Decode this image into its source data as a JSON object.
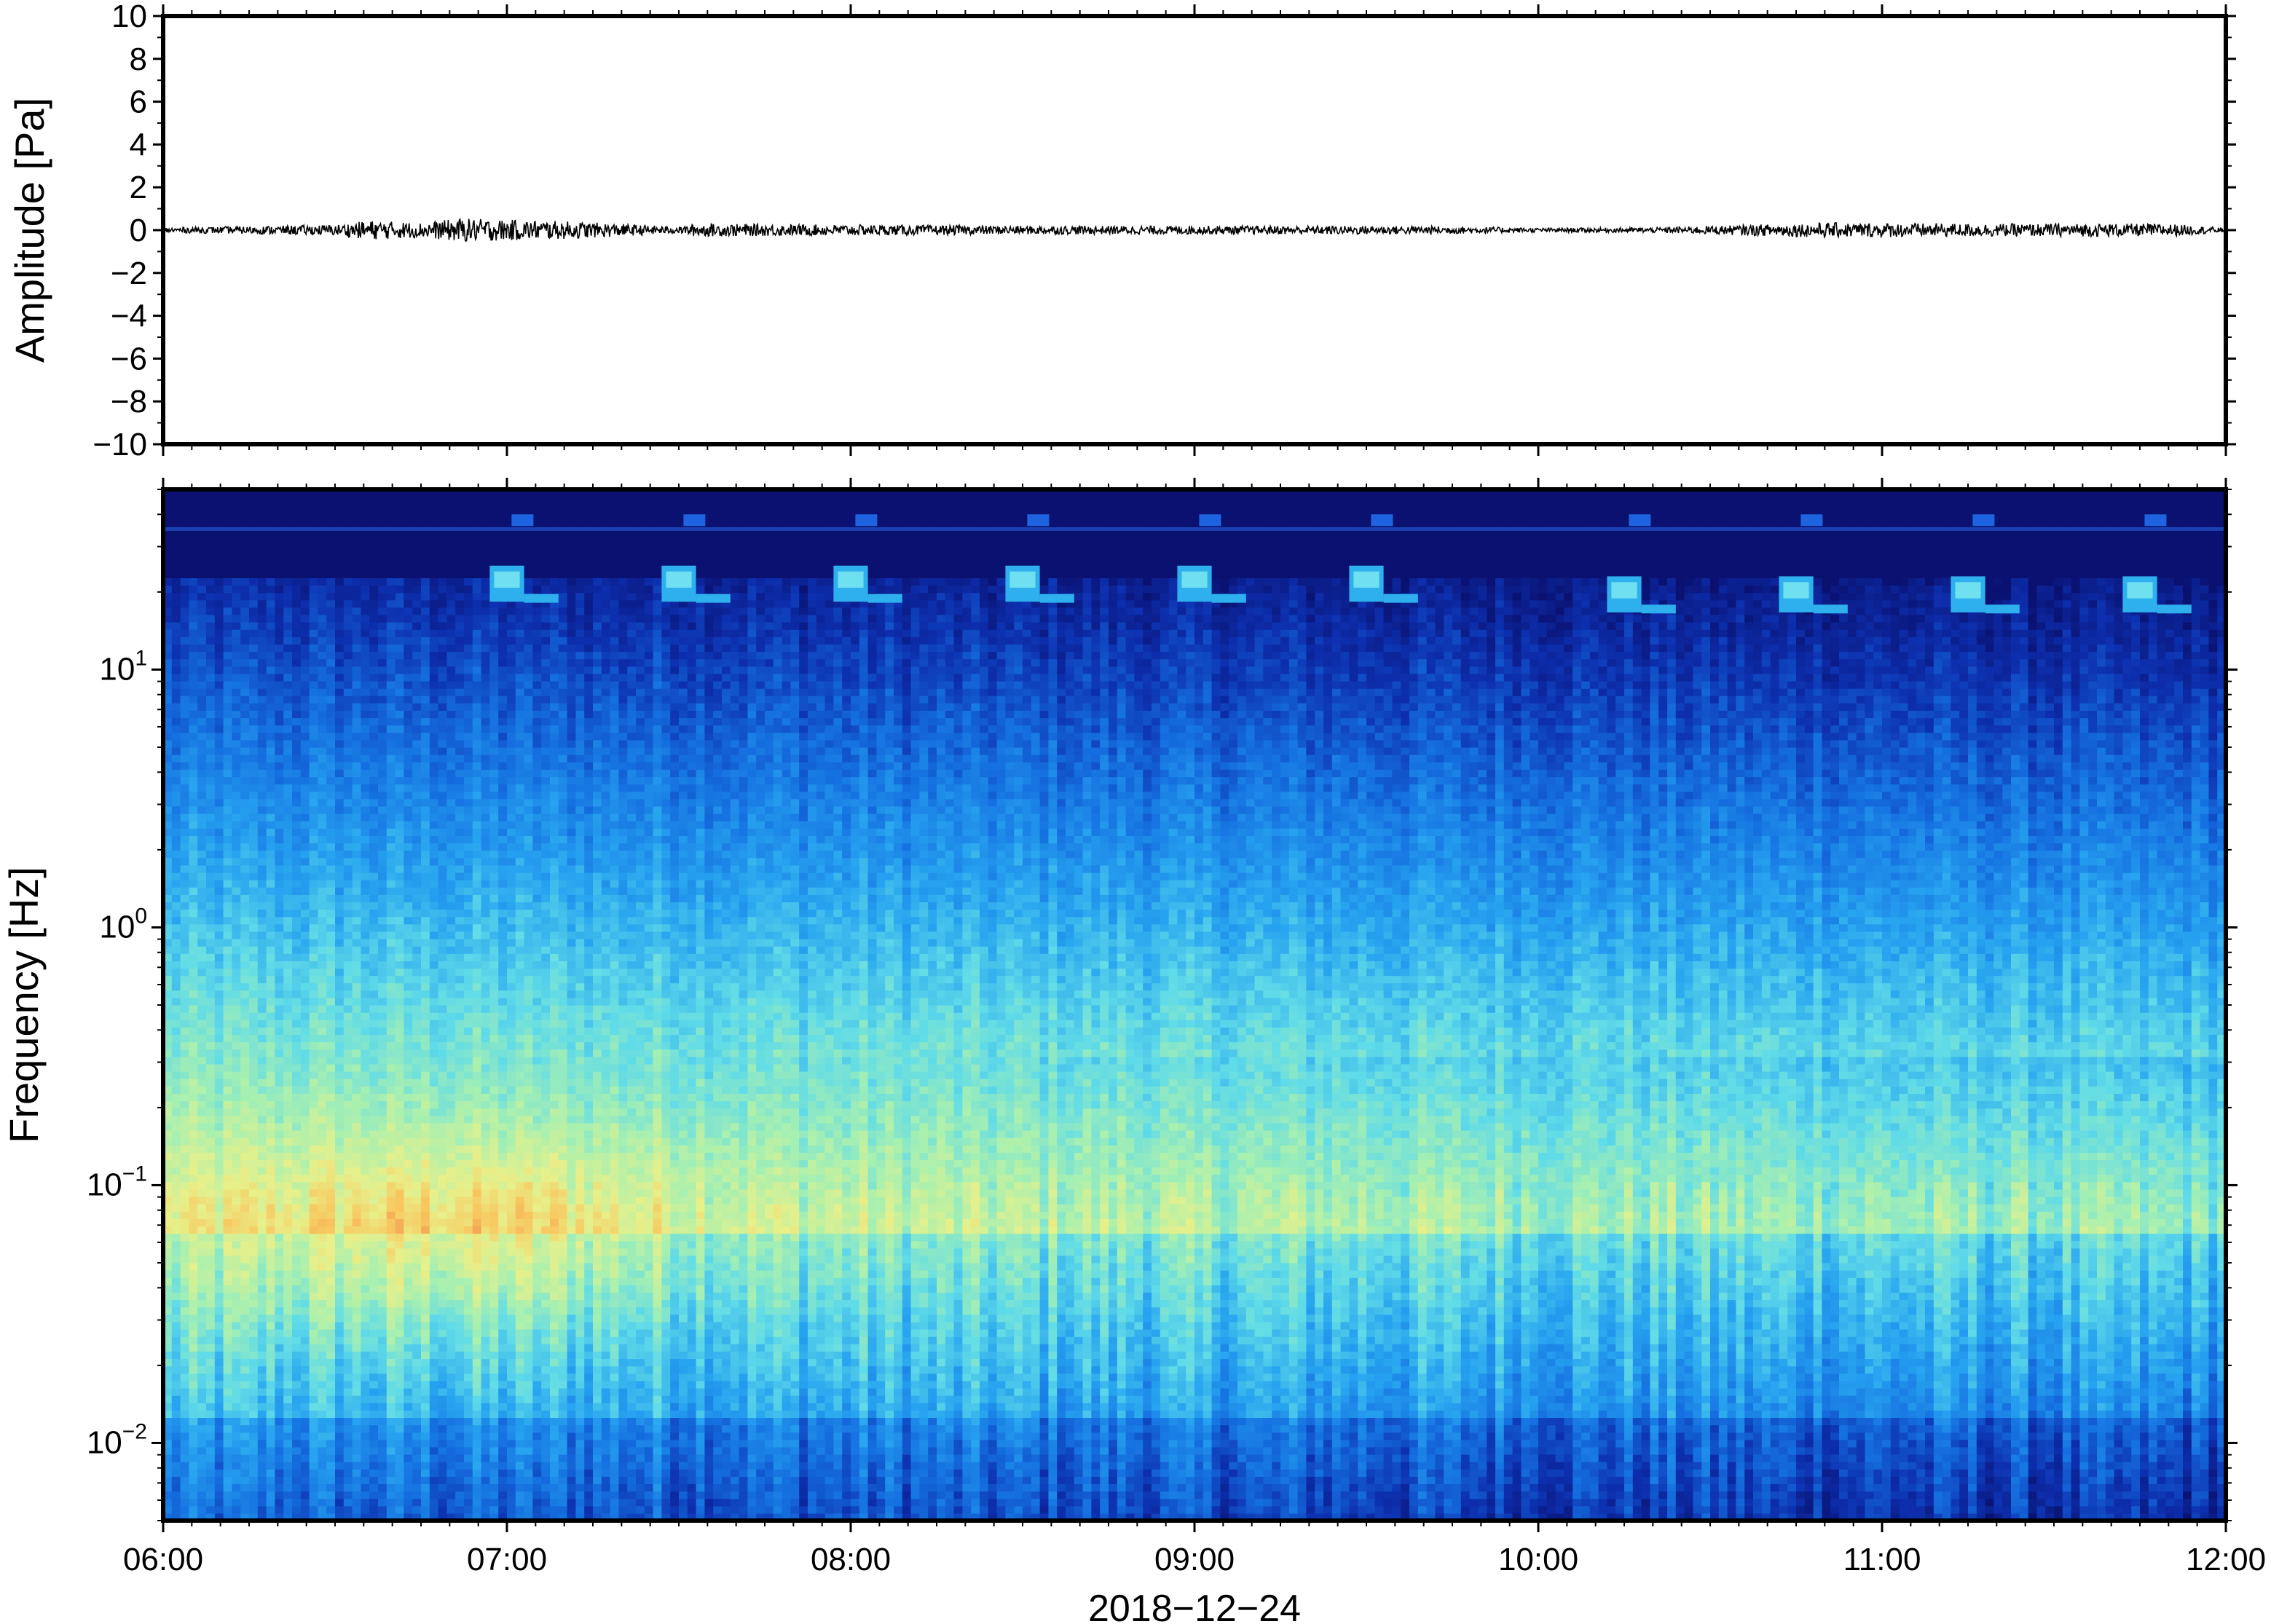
{
  "chart_data": [
    {
      "type": "line",
      "panel": "waveform",
      "ylabel": "Amplitude [Pa]",
      "ylim": [
        -10,
        10
      ],
      "yticks": [
        10,
        8,
        6,
        4,
        2,
        0,
        -2,
        -4,
        -6,
        -8,
        -10
      ],
      "ytick_labels": [
        "10",
        "8",
        "6",
        "4",
        "2",
        "0",
        "−2",
        "−4",
        "−6",
        "−8",
        "−10"
      ],
      "series_color": "#000000",
      "envelope": [
        {
          "t": "06:00",
          "amp": 0.12
        },
        {
          "t": "06:15",
          "amp": 0.18
        },
        {
          "t": "06:30",
          "amp": 0.25
        },
        {
          "t": "06:36",
          "amp": 0.45
        },
        {
          "t": "06:45",
          "amp": 0.35
        },
        {
          "t": "06:52",
          "amp": 0.55
        },
        {
          "t": "07:05",
          "amp": 0.45
        },
        {
          "t": "07:12",
          "amp": 0.4
        },
        {
          "t": "07:30",
          "amp": 0.15
        },
        {
          "t": "07:33",
          "amp": 0.3
        },
        {
          "t": "08:00",
          "amp": 0.25
        },
        {
          "t": "08:30",
          "amp": 0.2
        },
        {
          "t": "08:57",
          "amp": 0.2
        },
        {
          "t": "09:30",
          "amp": 0.2
        },
        {
          "t": "09:45",
          "amp": 0.18
        },
        {
          "t": "10:00",
          "amp": 0.1
        },
        {
          "t": "10:20",
          "amp": 0.12
        },
        {
          "t": "10:50",
          "amp": 0.35
        },
        {
          "t": "11:20",
          "amp": 0.3
        },
        {
          "t": "11:50",
          "amp": 0.3
        },
        {
          "t": "12:00",
          "amp": 0.1
        }
      ]
    },
    {
      "type": "heatmap",
      "panel": "spectrogram",
      "ylabel": "Frequency [Hz]",
      "yscale": "log",
      "ylim": [
        0.005,
        50
      ],
      "yticks": [
        0.01,
        0.1,
        1,
        10
      ],
      "ytick_labels": [
        {
          "base": "10",
          "exp": "−2"
        },
        {
          "base": "10",
          "exp": "−1"
        },
        {
          "base": "10",
          "exp": "0"
        },
        {
          "base": "10",
          "exp": "1"
        }
      ],
      "colormap": [
        "#0a1170",
        "#0d2fae",
        "#1570e0",
        "#27a3f0",
        "#60dbe8",
        "#a8f0b0",
        "#e8f08a",
        "#f8c860",
        "#f29450"
      ],
      "features": {
        "tonal_line_hz": 35,
        "calibration_pulses": [
          {
            "start": "06:57",
            "hz": 22
          },
          {
            "start": "07:27",
            "hz": 22
          },
          {
            "start": "07:57",
            "hz": 22
          },
          {
            "start": "08:27",
            "hz": 22
          },
          {
            "start": "08:57",
            "hz": 22
          },
          {
            "start": "09:27",
            "hz": 22
          },
          {
            "start": "10:12",
            "hz": 20
          },
          {
            "start": "10:42",
            "hz": 20
          },
          {
            "start": "11:12",
            "hz": 20
          },
          {
            "start": "11:42",
            "hz": 20
          }
        ],
        "energy_peak": {
          "t": "06:50",
          "hz": 0.06
        }
      }
    }
  ],
  "x_axis": {
    "start": "06:00",
    "end": "12:00",
    "tick_labels": [
      "06:00",
      "07:00",
      "08:00",
      "09:00",
      "10:00",
      "11:00",
      "12:00"
    ],
    "xlabel": "2018−12−24"
  }
}
